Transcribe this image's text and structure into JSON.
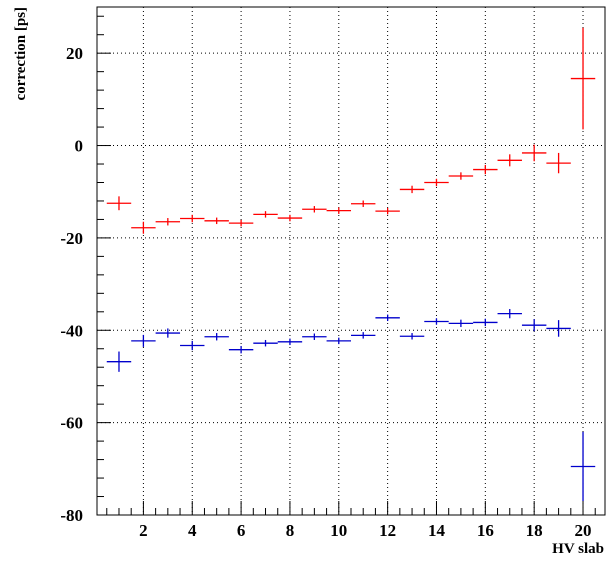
{
  "chart_data": {
    "type": "scatter",
    "title": "",
    "xlabel": "HV slab",
    "ylabel": "correction [ps]",
    "xlim": [
      0.1,
      20.9
    ],
    "ylim": [
      -80,
      30
    ],
    "x_ticks": [
      2,
      4,
      6,
      8,
      10,
      12,
      14,
      16,
      18,
      20
    ],
    "y_ticks": [
      20,
      0,
      -20,
      -40,
      -60,
      -80
    ],
    "grid": true,
    "legend": "none",
    "series": [
      {
        "color": "#ff0000",
        "points": [
          {
            "x": 1,
            "y": -12.5,
            "yerr": 1.5
          },
          {
            "x": 2,
            "y": -17.8,
            "yerr": 1.3
          },
          {
            "x": 3,
            "y": -16.5,
            "yerr": 0.8
          },
          {
            "x": 4,
            "y": -15.8,
            "yerr": 0.8
          },
          {
            "x": 5,
            "y": -16.3,
            "yerr": 0.7
          },
          {
            "x": 6,
            "y": -16.8,
            "yerr": 0.7
          },
          {
            "x": 7,
            "y": -14.9,
            "yerr": 0.7
          },
          {
            "x": 8,
            "y": -15.7,
            "yerr": 0.7
          },
          {
            "x": 9,
            "y": -13.8,
            "yerr": 0.7
          },
          {
            "x": 10,
            "y": -14.1,
            "yerr": 0.7
          },
          {
            "x": 11,
            "y": -12.6,
            "yerr": 0.7
          },
          {
            "x": 12,
            "y": -14.2,
            "yerr": 0.7
          },
          {
            "x": 13,
            "y": -9.5,
            "yerr": 0.8
          },
          {
            "x": 14,
            "y": -8.0,
            "yerr": 0.8
          },
          {
            "x": 15,
            "y": -6.6,
            "yerr": 0.8
          },
          {
            "x": 16,
            "y": -5.2,
            "yerr": 1.0
          },
          {
            "x": 17,
            "y": -3.2,
            "yerr": 1.3
          },
          {
            "x": 18,
            "y": -1.6,
            "yerr": 1.8
          },
          {
            "x": 19,
            "y": -3.8,
            "yerr": 2.2
          },
          {
            "x": 20,
            "y": 14.5,
            "yerr": 11.0
          }
        ]
      },
      {
        "color": "#0000cc",
        "points": [
          {
            "x": 1,
            "y": -46.8,
            "yerr": 2.2
          },
          {
            "x": 2,
            "y": -42.3,
            "yerr": 1.3
          },
          {
            "x": 3,
            "y": -40.6,
            "yerr": 1.0
          },
          {
            "x": 4,
            "y": -43.3,
            "yerr": 1.0
          },
          {
            "x": 5,
            "y": -41.4,
            "yerr": 0.8
          },
          {
            "x": 6,
            "y": -44.2,
            "yerr": 0.8
          },
          {
            "x": 7,
            "y": -42.8,
            "yerr": 0.7
          },
          {
            "x": 8,
            "y": -42.5,
            "yerr": 0.7
          },
          {
            "x": 9,
            "y": -41.4,
            "yerr": 0.7
          },
          {
            "x": 10,
            "y": -42.3,
            "yerr": 0.7
          },
          {
            "x": 11,
            "y": -41.1,
            "yerr": 0.7
          },
          {
            "x": 12,
            "y": -37.3,
            "yerr": 0.7
          },
          {
            "x": 13,
            "y": -41.3,
            "yerr": 0.7
          },
          {
            "x": 14,
            "y": -38.1,
            "yerr": 0.7
          },
          {
            "x": 15,
            "y": -38.5,
            "yerr": 0.8
          },
          {
            "x": 16,
            "y": -38.3,
            "yerr": 0.8
          },
          {
            "x": 17,
            "y": -36.4,
            "yerr": 1.0
          },
          {
            "x": 18,
            "y": -38.9,
            "yerr": 1.3
          },
          {
            "x": 19,
            "y": -39.6,
            "yerr": 1.8
          },
          {
            "x": 20,
            "y": -69.5,
            "yerr": 7.5
          }
        ]
      }
    ]
  }
}
